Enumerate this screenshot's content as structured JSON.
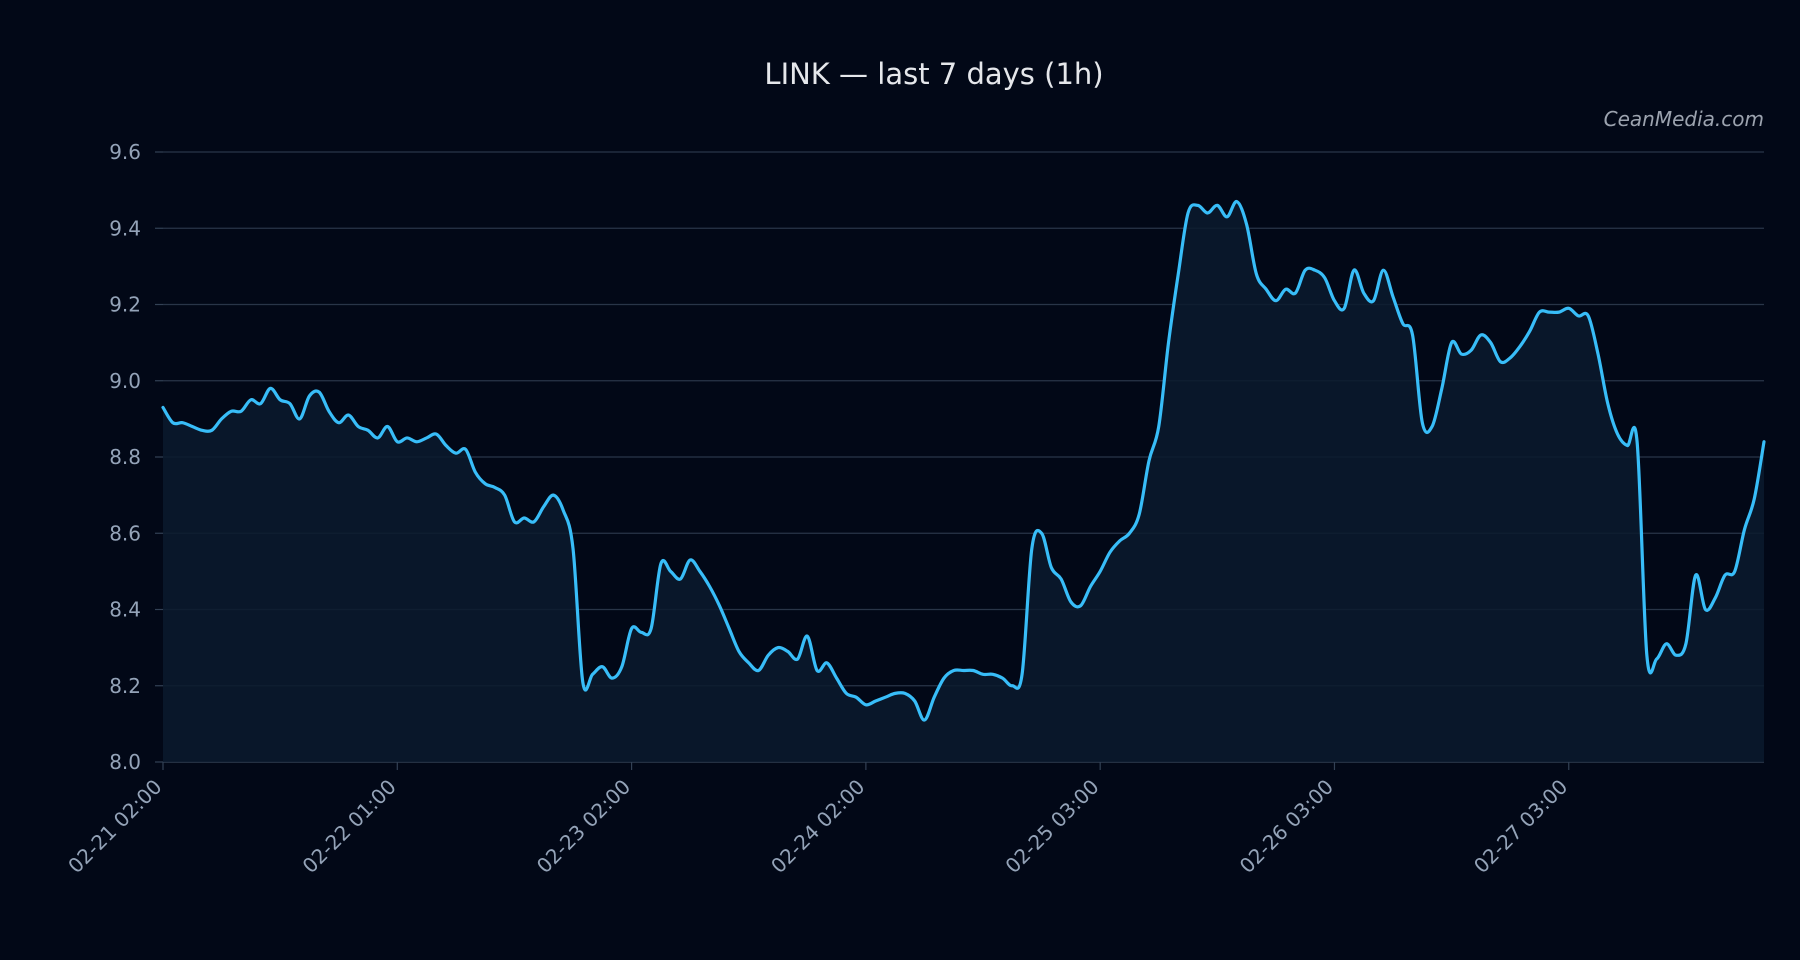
{
  "chart_data": {
    "type": "area",
    "title": "LINK — last 7 days (1h)",
    "watermark": "CeanMedia.com",
    "xlabel": "",
    "ylabel": "",
    "ylim": [
      8.0,
      9.6
    ],
    "yticks": [
      "8.0",
      "8.2",
      "8.4",
      "8.6",
      "8.8",
      "9.0",
      "9.2",
      "9.4",
      "9.6"
    ],
    "xtick_labels": [
      "02-21 02:00",
      "02-22 01:00",
      "02-23 02:00",
      "02-24 02:00",
      "02-25 03:00",
      "02-26 03:00",
      "02-27 03:00"
    ],
    "xtick_index": [
      0,
      24,
      48,
      72,
      96,
      120,
      144
    ],
    "grid": true,
    "legend": "none",
    "colors": {
      "background": "#020817",
      "line": "#38bdf8",
      "fill": "#0a1a2e",
      "grid": "#334155",
      "tick": "#94a3b8",
      "title": "#e5e7eb",
      "watermark": "#9ca3af"
    },
    "series": [
      {
        "values": [
          8.93,
          8.89,
          8.89,
          8.88,
          8.87,
          8.87,
          8.9,
          8.92,
          8.92,
          8.95,
          8.94,
          8.98,
          8.95,
          8.94,
          8.9,
          8.96,
          8.97,
          8.92,
          8.89,
          8.91,
          8.88,
          8.87,
          8.85,
          8.88,
          8.84,
          8.85,
          8.84,
          8.85,
          8.86,
          8.83,
          8.81,
          8.82,
          8.76,
          8.73,
          8.72,
          8.7,
          8.63,
          8.64,
          8.63,
          8.67,
          8.7,
          8.66,
          8.56,
          8.21,
          8.23,
          8.25,
          8.22,
          8.25,
          8.35,
          8.34,
          8.35,
          8.52,
          8.5,
          8.48,
          8.53,
          8.5,
          8.46,
          8.41,
          8.35,
          8.29,
          8.26,
          8.24,
          8.28,
          8.3,
          8.29,
          8.27,
          8.33,
          8.24,
          8.26,
          8.22,
          8.18,
          8.17,
          8.15,
          8.16,
          8.17,
          8.18,
          8.18,
          8.16,
          8.11,
          8.17,
          8.22,
          8.24,
          8.24,
          8.24,
          8.23,
          8.23,
          8.22,
          8.2,
          8.23,
          8.56,
          8.6,
          8.51,
          8.48,
          8.42,
          8.41,
          8.46,
          8.5,
          8.55,
          8.58,
          8.6,
          8.65,
          8.79,
          8.88,
          9.1,
          9.28,
          9.44,
          9.46,
          9.44,
          9.46,
          9.43,
          9.47,
          9.41,
          9.28,
          9.24,
          9.21,
          9.24,
          9.23,
          9.29,
          9.29,
          9.27,
          9.21,
          9.19,
          9.29,
          9.23,
          9.21,
          9.29,
          9.22,
          9.15,
          9.12,
          8.89,
          8.88,
          8.98,
          9.1,
          9.07,
          9.08,
          9.12,
          9.1,
          9.05,
          9.06,
          9.09,
          9.13,
          9.18,
          9.18,
          9.18,
          9.19,
          9.17,
          9.17,
          9.07,
          8.94,
          8.86,
          8.83,
          8.84,
          8.28,
          8.27,
          8.31,
          8.28,
          8.31,
          8.49,
          8.4,
          8.43,
          8.49,
          8.5,
          8.61,
          8.69,
          8.84
        ]
      }
    ]
  }
}
